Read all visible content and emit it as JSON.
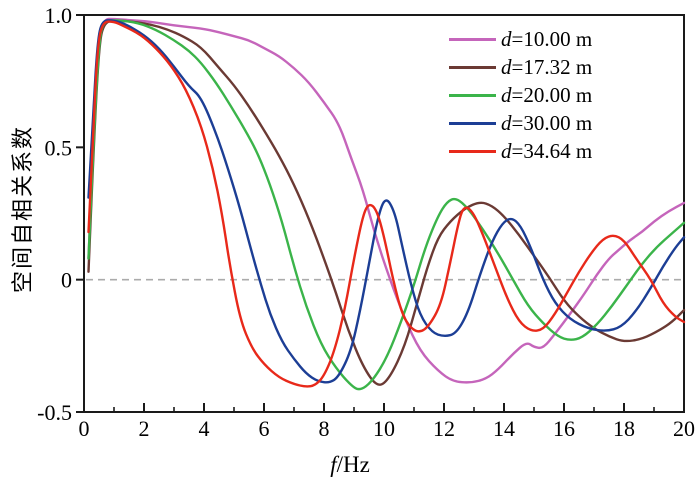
{
  "figure": {
    "background": "#ffffff",
    "axis_color": "#1a1a1a"
  },
  "labels": {
    "ylabel": "空间自相关系数",
    "xlabel_var": "f",
    "xlabel_rest": "/Hz"
  },
  "legend": {
    "items": [
      {
        "var": "d",
        "rest": "=10.00 m",
        "color": "#C565BB"
      },
      {
        "var": "d",
        "rest": "=17.32 m",
        "color": "#6B3A34"
      },
      {
        "var": "d",
        "rest": "=20.00 m",
        "color": "#3BB44A"
      },
      {
        "var": "d",
        "rest": "=30.00 m",
        "color": "#1C3E95"
      },
      {
        "var": "d",
        "rest": "=34.64 m",
        "color": "#E8291A"
      }
    ]
  },
  "chart_data": {
    "type": "line",
    "title": "",
    "xlabel": "f/Hz",
    "ylabel": "空间自相关系数",
    "xlim": [
      0,
      20
    ],
    "ylim": [
      -0.5,
      1.0
    ],
    "grid": "off",
    "legend_position": "top-right",
    "x_major_ticks": [
      0,
      2,
      4,
      6,
      8,
      10,
      12,
      14,
      16,
      18,
      20
    ],
    "x_major_tick_labels": [
      "0",
      "2",
      "4",
      "6",
      "8",
      "10",
      "12",
      "14",
      "16",
      "18",
      "20"
    ],
    "x_minor_ticks": [
      1,
      3,
      5,
      7,
      9,
      11,
      13,
      15,
      17,
      19
    ],
    "y_ticks": [
      {
        "value": 1.0,
        "label": "1.0"
      },
      {
        "value": 0.5,
        "label": "0.5"
      },
      {
        "value": 0,
        "label": "0"
      },
      {
        "value": -0.5,
        "label": "-0.5"
      }
    ],
    "zero_line": {
      "y": 0,
      "style": "dashed",
      "color": "#ABABAB"
    },
    "series": [
      {
        "name": "d=10.00 m",
        "color": "#C565BB",
        "points": [
          [
            0.15,
            0.08
          ],
          [
            0.3,
            0.5
          ],
          [
            0.5,
            0.92
          ],
          [
            0.68,
            0.985
          ],
          [
            1.0,
            0.985
          ],
          [
            1.6,
            0.98
          ],
          [
            2.2,
            0.975
          ],
          [
            3.0,
            0.96
          ],
          [
            3.9,
            0.95
          ],
          [
            4.5,
            0.935
          ],
          [
            5.0,
            0.92
          ],
          [
            5.5,
            0.905
          ],
          [
            6.0,
            0.875
          ],
          [
            6.5,
            0.845
          ],
          [
            7.0,
            0.8
          ],
          [
            7.5,
            0.745
          ],
          [
            8.0,
            0.67
          ],
          [
            8.5,
            0.59
          ],
          [
            8.9,
            0.46
          ],
          [
            9.3,
            0.34
          ],
          [
            9.7,
            0.17
          ],
          [
            10.2,
            0.0
          ],
          [
            10.7,
            -0.15
          ],
          [
            11.2,
            -0.27
          ],
          [
            11.8,
            -0.345
          ],
          [
            12.3,
            -0.385
          ],
          [
            12.9,
            -0.39
          ],
          [
            13.4,
            -0.375
          ],
          [
            13.8,
            -0.34
          ],
          [
            14.3,
            -0.28
          ],
          [
            14.75,
            -0.235
          ],
          [
            15.0,
            -0.255
          ],
          [
            15.3,
            -0.26
          ],
          [
            15.7,
            -0.205
          ],
          [
            16.2,
            -0.13
          ],
          [
            16.7,
            -0.05
          ],
          [
            17.1,
            0.02
          ],
          [
            17.5,
            0.08
          ],
          [
            17.8,
            0.11
          ],
          [
            18.2,
            0.15
          ],
          [
            18.6,
            0.18
          ],
          [
            19.0,
            0.22
          ],
          [
            19.5,
            0.26
          ],
          [
            20,
            0.29
          ]
        ]
      },
      {
        "name": "d=17.32 m",
        "color": "#6B3A34",
        "points": [
          [
            0.15,
            0.03
          ],
          [
            0.3,
            0.45
          ],
          [
            0.5,
            0.89
          ],
          [
            0.68,
            0.975
          ],
          [
            1.1,
            0.98
          ],
          [
            1.6,
            0.975
          ],
          [
            2.2,
            0.965
          ],
          [
            2.8,
            0.945
          ],
          [
            3.3,
            0.92
          ],
          [
            3.9,
            0.88
          ],
          [
            4.5,
            0.8
          ],
          [
            5.0,
            0.735
          ],
          [
            5.5,
            0.655
          ],
          [
            6.0,
            0.565
          ],
          [
            6.5,
            0.47
          ],
          [
            7.0,
            0.36
          ],
          [
            7.5,
            0.23
          ],
          [
            8.0,
            0.08
          ],
          [
            8.4,
            -0.05
          ],
          [
            8.8,
            -0.19
          ],
          [
            9.3,
            -0.33
          ],
          [
            9.8,
            -0.41
          ],
          [
            10.2,
            -0.37
          ],
          [
            10.7,
            -0.25
          ],
          [
            11.1,
            -0.09
          ],
          [
            11.45,
            0.05
          ],
          [
            11.8,
            0.16
          ],
          [
            12.2,
            0.22
          ],
          [
            12.7,
            0.27
          ],
          [
            13.2,
            0.295
          ],
          [
            13.6,
            0.28
          ],
          [
            14.0,
            0.24
          ],
          [
            14.5,
            0.17
          ],
          [
            15.0,
            0.09
          ],
          [
            15.5,
            0.01
          ],
          [
            16.0,
            -0.08
          ],
          [
            16.5,
            -0.14
          ],
          [
            17.0,
            -0.185
          ],
          [
            17.5,
            -0.215
          ],
          [
            18.0,
            -0.235
          ],
          [
            18.6,
            -0.225
          ],
          [
            19.2,
            -0.19
          ],
          [
            19.6,
            -0.16
          ],
          [
            20,
            -0.115
          ]
        ]
      },
      {
        "name": "d=20.00 m",
        "color": "#3BB44A",
        "points": [
          [
            0.15,
            0.08
          ],
          [
            0.3,
            0.48
          ],
          [
            0.5,
            0.9
          ],
          [
            0.65,
            0.98
          ],
          [
            1.2,
            0.98
          ],
          [
            1.8,
            0.97
          ],
          [
            2.4,
            0.945
          ],
          [
            3.0,
            0.905
          ],
          [
            3.5,
            0.865
          ],
          [
            3.9,
            0.82
          ],
          [
            4.4,
            0.745
          ],
          [
            4.9,
            0.655
          ],
          [
            5.4,
            0.56
          ],
          [
            5.8,
            0.475
          ],
          [
            6.2,
            0.36
          ],
          [
            6.6,
            0.22
          ],
          [
            7.0,
            0.05
          ],
          [
            7.4,
            -0.1
          ],
          [
            7.9,
            -0.245
          ],
          [
            8.4,
            -0.335
          ],
          [
            8.9,
            -0.4
          ],
          [
            9.2,
            -0.42
          ],
          [
            9.6,
            -0.385
          ],
          [
            10.1,
            -0.295
          ],
          [
            10.6,
            -0.15
          ],
          [
            11.0,
            -0.02
          ],
          [
            11.4,
            0.13
          ],
          [
            11.8,
            0.24
          ],
          [
            12.1,
            0.295
          ],
          [
            12.4,
            0.31
          ],
          [
            12.8,
            0.27
          ],
          [
            13.3,
            0.19
          ],
          [
            13.8,
            0.1
          ],
          [
            14.3,
            0.0
          ],
          [
            14.8,
            -0.1
          ],
          [
            15.3,
            -0.165
          ],
          [
            15.8,
            -0.215
          ],
          [
            16.2,
            -0.23
          ],
          [
            16.6,
            -0.22
          ],
          [
            17.1,
            -0.17
          ],
          [
            17.6,
            -0.1
          ],
          [
            18.1,
            -0.02
          ],
          [
            18.6,
            0.06
          ],
          [
            19.1,
            0.125
          ],
          [
            19.6,
            0.175
          ],
          [
            20,
            0.215
          ]
        ]
      },
      {
        "name": "d=30.00 m",
        "color": "#1C3E95",
        "points": [
          [
            0.15,
            0.31
          ],
          [
            0.3,
            0.62
          ],
          [
            0.45,
            0.9
          ],
          [
            0.6,
            0.98
          ],
          [
            1.0,
            0.98
          ],
          [
            1.4,
            0.965
          ],
          [
            2.0,
            0.925
          ],
          [
            2.5,
            0.875
          ],
          [
            3.0,
            0.805
          ],
          [
            3.5,
            0.73
          ],
          [
            3.9,
            0.69
          ],
          [
            4.4,
            0.555
          ],
          [
            4.8,
            0.42
          ],
          [
            5.2,
            0.27
          ],
          [
            5.6,
            0.1
          ],
          [
            5.9,
            -0.02
          ],
          [
            6.2,
            -0.13
          ],
          [
            6.6,
            -0.235
          ],
          [
            7.0,
            -0.3
          ],
          [
            7.4,
            -0.355
          ],
          [
            7.8,
            -0.385
          ],
          [
            8.2,
            -0.39
          ],
          [
            8.5,
            -0.365
          ],
          [
            8.9,
            -0.27
          ],
          [
            9.2,
            -0.12
          ],
          [
            9.5,
            0.06
          ],
          [
            9.8,
            0.24
          ],
          [
            10.05,
            0.315
          ],
          [
            10.35,
            0.26
          ],
          [
            10.6,
            0.13
          ],
          [
            10.9,
            -0.02
          ],
          [
            11.2,
            -0.135
          ],
          [
            11.6,
            -0.2
          ],
          [
            12.0,
            -0.215
          ],
          [
            12.4,
            -0.205
          ],
          [
            12.8,
            -0.125
          ],
          [
            13.2,
            0.02
          ],
          [
            13.6,
            0.145
          ],
          [
            13.95,
            0.215
          ],
          [
            14.25,
            0.235
          ],
          [
            14.55,
            0.205
          ],
          [
            14.9,
            0.12
          ],
          [
            15.3,
            0.0
          ],
          [
            15.7,
            -0.09
          ],
          [
            16.2,
            -0.15
          ],
          [
            16.8,
            -0.185
          ],
          [
            17.4,
            -0.195
          ],
          [
            17.9,
            -0.18
          ],
          [
            18.4,
            -0.12
          ],
          [
            18.9,
            -0.03
          ],
          [
            19.3,
            0.05
          ],
          [
            19.7,
            0.12
          ],
          [
            20,
            0.16
          ]
        ]
      },
      {
        "name": "d=34.64 m",
        "color": "#E8291A",
        "points": [
          [
            0.15,
            0.18
          ],
          [
            0.3,
            0.55
          ],
          [
            0.45,
            0.88
          ],
          [
            0.62,
            0.975
          ],
          [
            1.0,
            0.975
          ],
          [
            1.3,
            0.96
          ],
          [
            1.9,
            0.925
          ],
          [
            2.4,
            0.875
          ],
          [
            2.9,
            0.81
          ],
          [
            3.4,
            0.72
          ],
          [
            3.9,
            0.585
          ],
          [
            4.3,
            0.42
          ],
          [
            4.6,
            0.25
          ],
          [
            4.85,
            0.06
          ],
          [
            5.2,
            -0.15
          ],
          [
            5.6,
            -0.26
          ],
          [
            6.0,
            -0.32
          ],
          [
            6.5,
            -0.37
          ],
          [
            7.0,
            -0.395
          ],
          [
            7.4,
            -0.405
          ],
          [
            7.7,
            -0.4
          ],
          [
            8.0,
            -0.365
          ],
          [
            8.35,
            -0.27
          ],
          [
            8.7,
            -0.11
          ],
          [
            9.0,
            0.08
          ],
          [
            9.3,
            0.245
          ],
          [
            9.5,
            0.29
          ],
          [
            9.75,
            0.265
          ],
          [
            10.0,
            0.165
          ],
          [
            10.3,
            0.0
          ],
          [
            10.6,
            -0.13
          ],
          [
            10.9,
            -0.185
          ],
          [
            11.2,
            -0.2
          ],
          [
            11.5,
            -0.175
          ],
          [
            11.9,
            -0.095
          ],
          [
            12.2,
            0.06
          ],
          [
            12.45,
            0.2
          ],
          [
            12.65,
            0.28
          ],
          [
            12.95,
            0.26
          ],
          [
            13.3,
            0.17
          ],
          [
            13.7,
            0.05
          ],
          [
            14.1,
            -0.07
          ],
          [
            14.5,
            -0.16
          ],
          [
            14.9,
            -0.195
          ],
          [
            15.3,
            -0.19
          ],
          [
            15.7,
            -0.13
          ],
          [
            16.1,
            -0.05
          ],
          [
            16.5,
            0.03
          ],
          [
            16.9,
            0.1
          ],
          [
            17.3,
            0.155
          ],
          [
            17.65,
            0.17
          ],
          [
            18.0,
            0.15
          ],
          [
            18.4,
            0.08
          ],
          [
            18.9,
            0.0
          ],
          [
            19.3,
            -0.09
          ],
          [
            19.7,
            -0.14
          ],
          [
            20,
            -0.16
          ]
        ]
      }
    ]
  }
}
